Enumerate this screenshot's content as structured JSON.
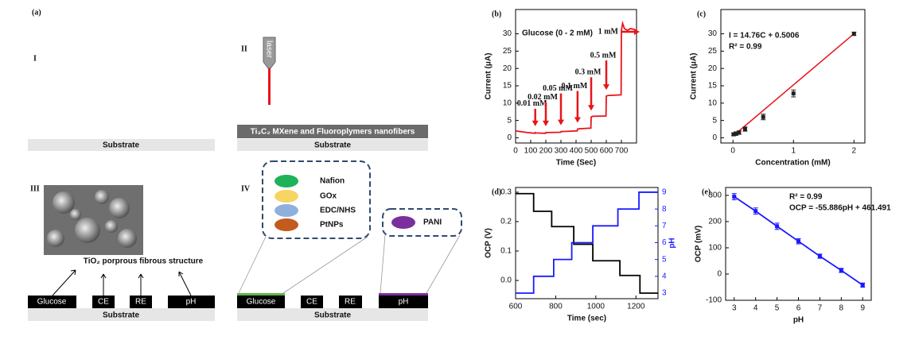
{
  "schematic": {
    "panel_label": "(a)",
    "sections": [
      "I",
      "II",
      "III",
      "IV"
    ],
    "substrate": "Substrate",
    "mxene_layer": "Ti₃C₂ MXene and Fluoroplymers nanofibers",
    "laser": "laser",
    "tio2": "TiO₂ porprous fibrous structure",
    "electrodes": [
      "Glucose",
      "CE",
      "RE",
      "pH"
    ],
    "reagents": [
      "Nafion",
      "GOx",
      "EDC/NHS",
      "PtNPs"
    ],
    "ph_layer": "PANI"
  },
  "chart_data": [
    {
      "type": "line",
      "panel": "(b)",
      "title": "Glucose (0 - 2 mM)",
      "x_label": "Time (Sec)",
      "y_label": "Current (μA)",
      "x": [
        0,
        30,
        80,
        128,
        130,
        135,
        198,
        200,
        205,
        298,
        300,
        305,
        408,
        410,
        420,
        498,
        500,
        510,
        598,
        600,
        610,
        698,
        700,
        708,
        720,
        740,
        760,
        790
      ],
      "series": [
        {
          "color": "#e8141b",
          "values": [
            2.0,
            1.8,
            1.5,
            1.3,
            1.5,
            1.4,
            1.3,
            1.5,
            1.5,
            1.6,
            1.8,
            1.8,
            2.0,
            2.5,
            2.6,
            2.8,
            6.0,
            6.2,
            6.3,
            12.0,
            12.2,
            12.4,
            31.0,
            33.0,
            31.5,
            31.0,
            31.5,
            31.2
          ]
        }
      ],
      "annotations": [
        {
          "text": "0.01 mM",
          "x": 130
        },
        {
          "text": "0.02 mM",
          "x": 200
        },
        {
          "text": "0.05 mM",
          "x": 300
        },
        {
          "text": "0.1 mM",
          "x": 410
        },
        {
          "text": "0.3 mM",
          "x": 500
        },
        {
          "text": "0.5 mM",
          "x": 600
        },
        {
          "text": "1 mM",
          "x": 700
        }
      ],
      "xlim": [
        0,
        800
      ],
      "xticks": [
        0,
        100,
        200,
        300,
        400,
        500,
        600,
        700
      ],
      "ylim": [
        -1.5,
        37
      ],
      "yticks": [
        0,
        5,
        10,
        15,
        20,
        25,
        30
      ]
    },
    {
      "type": "scatter",
      "panel": "(c)",
      "x_label": "Concentration (mM)",
      "y_label": "Current (μA)",
      "notes": [
        "I = 14.76C + 0.5006",
        "R² = 0.99"
      ],
      "x": [
        0.01,
        0.05,
        0.1,
        0.2,
        0.5,
        1,
        2
      ],
      "values": [
        1.0,
        1.2,
        1.5,
        2.5,
        6.0,
        12.8,
        30.0
      ],
      "errors": [
        0.4,
        0.5,
        0.5,
        0.6,
        0.8,
        1.0,
        0.5
      ],
      "color": "#222222",
      "fit": {
        "slope": 14.76,
        "intercept": 0.5006,
        "color": "#e8141b"
      },
      "xlim": [
        -0.2,
        2.18
      ],
      "xticks": [
        0,
        1,
        2
      ],
      "ylim": [
        -1.5,
        37
      ],
      "yticks": [
        0,
        5,
        10,
        15,
        20,
        25,
        30
      ]
    },
    {
      "type": "line",
      "panel": "(d)",
      "x_label": "Time (sec)",
      "y_label": "OCP (V)",
      "y2_label": "pH",
      "series": [
        {
          "color": "#000000",
          "x": [
            600,
            690,
            690,
            780,
            780,
            890,
            890,
            985,
            985,
            1120,
            1120,
            1220,
            1220,
            1310
          ],
          "values": [
            0.295,
            0.295,
            0.235,
            0.235,
            0.183,
            0.183,
            0.123,
            0.123,
            0.067,
            0.067,
            0.017,
            0.017,
            -0.043,
            -0.043
          ]
        },
        {
          "color": "#1a1aff",
          "axis": "y2",
          "x": [
            600,
            690,
            690,
            790,
            790,
            880,
            880,
            985,
            985,
            1110,
            1110,
            1215,
            1215,
            1310
          ],
          "values": [
            3,
            3,
            4,
            4,
            5,
            5,
            6,
            6,
            7,
            7,
            8,
            8,
            9,
            9
          ]
        }
      ],
      "xlim": [
        600,
        1310
      ],
      "xticks": [
        600,
        800,
        1000,
        1200
      ],
      "ylim": [
        -0.062,
        0.316
      ],
      "yticks": [
        {
          "value": 0,
          "label": "0.0"
        },
        0.1,
        0.2,
        0.3
      ],
      "y2lim": [
        2.67,
        9.28
      ],
      "y2ticks": [
        3,
        4,
        5,
        6,
        7,
        8,
        9
      ],
      "y2color": "#1a1aff"
    },
    {
      "type": "line",
      "panel": "(e)",
      "x_label": "pH",
      "y_label": "OCP (mV)",
      "notes": [
        "R² = 0.99",
        "OCP = -55.886pH + 461.491"
      ],
      "x": [
        3,
        4,
        5,
        6,
        7,
        8,
        9
      ],
      "series": [
        {
          "color": "#1a1aff",
          "markers": true,
          "values": [
            295,
            240,
            182,
            125,
            68,
            14,
            -42
          ],
          "errors": [
            12,
            12,
            12,
            10,
            8,
            8,
            8
          ]
        }
      ],
      "xlim": [
        2.6,
        9.4
      ],
      "xticks": [
        3,
        4,
        5,
        6,
        7,
        8,
        9
      ],
      "ylim": [
        -100,
        330
      ],
      "yticks": [
        -100,
        0,
        100,
        200,
        300
      ]
    }
  ]
}
